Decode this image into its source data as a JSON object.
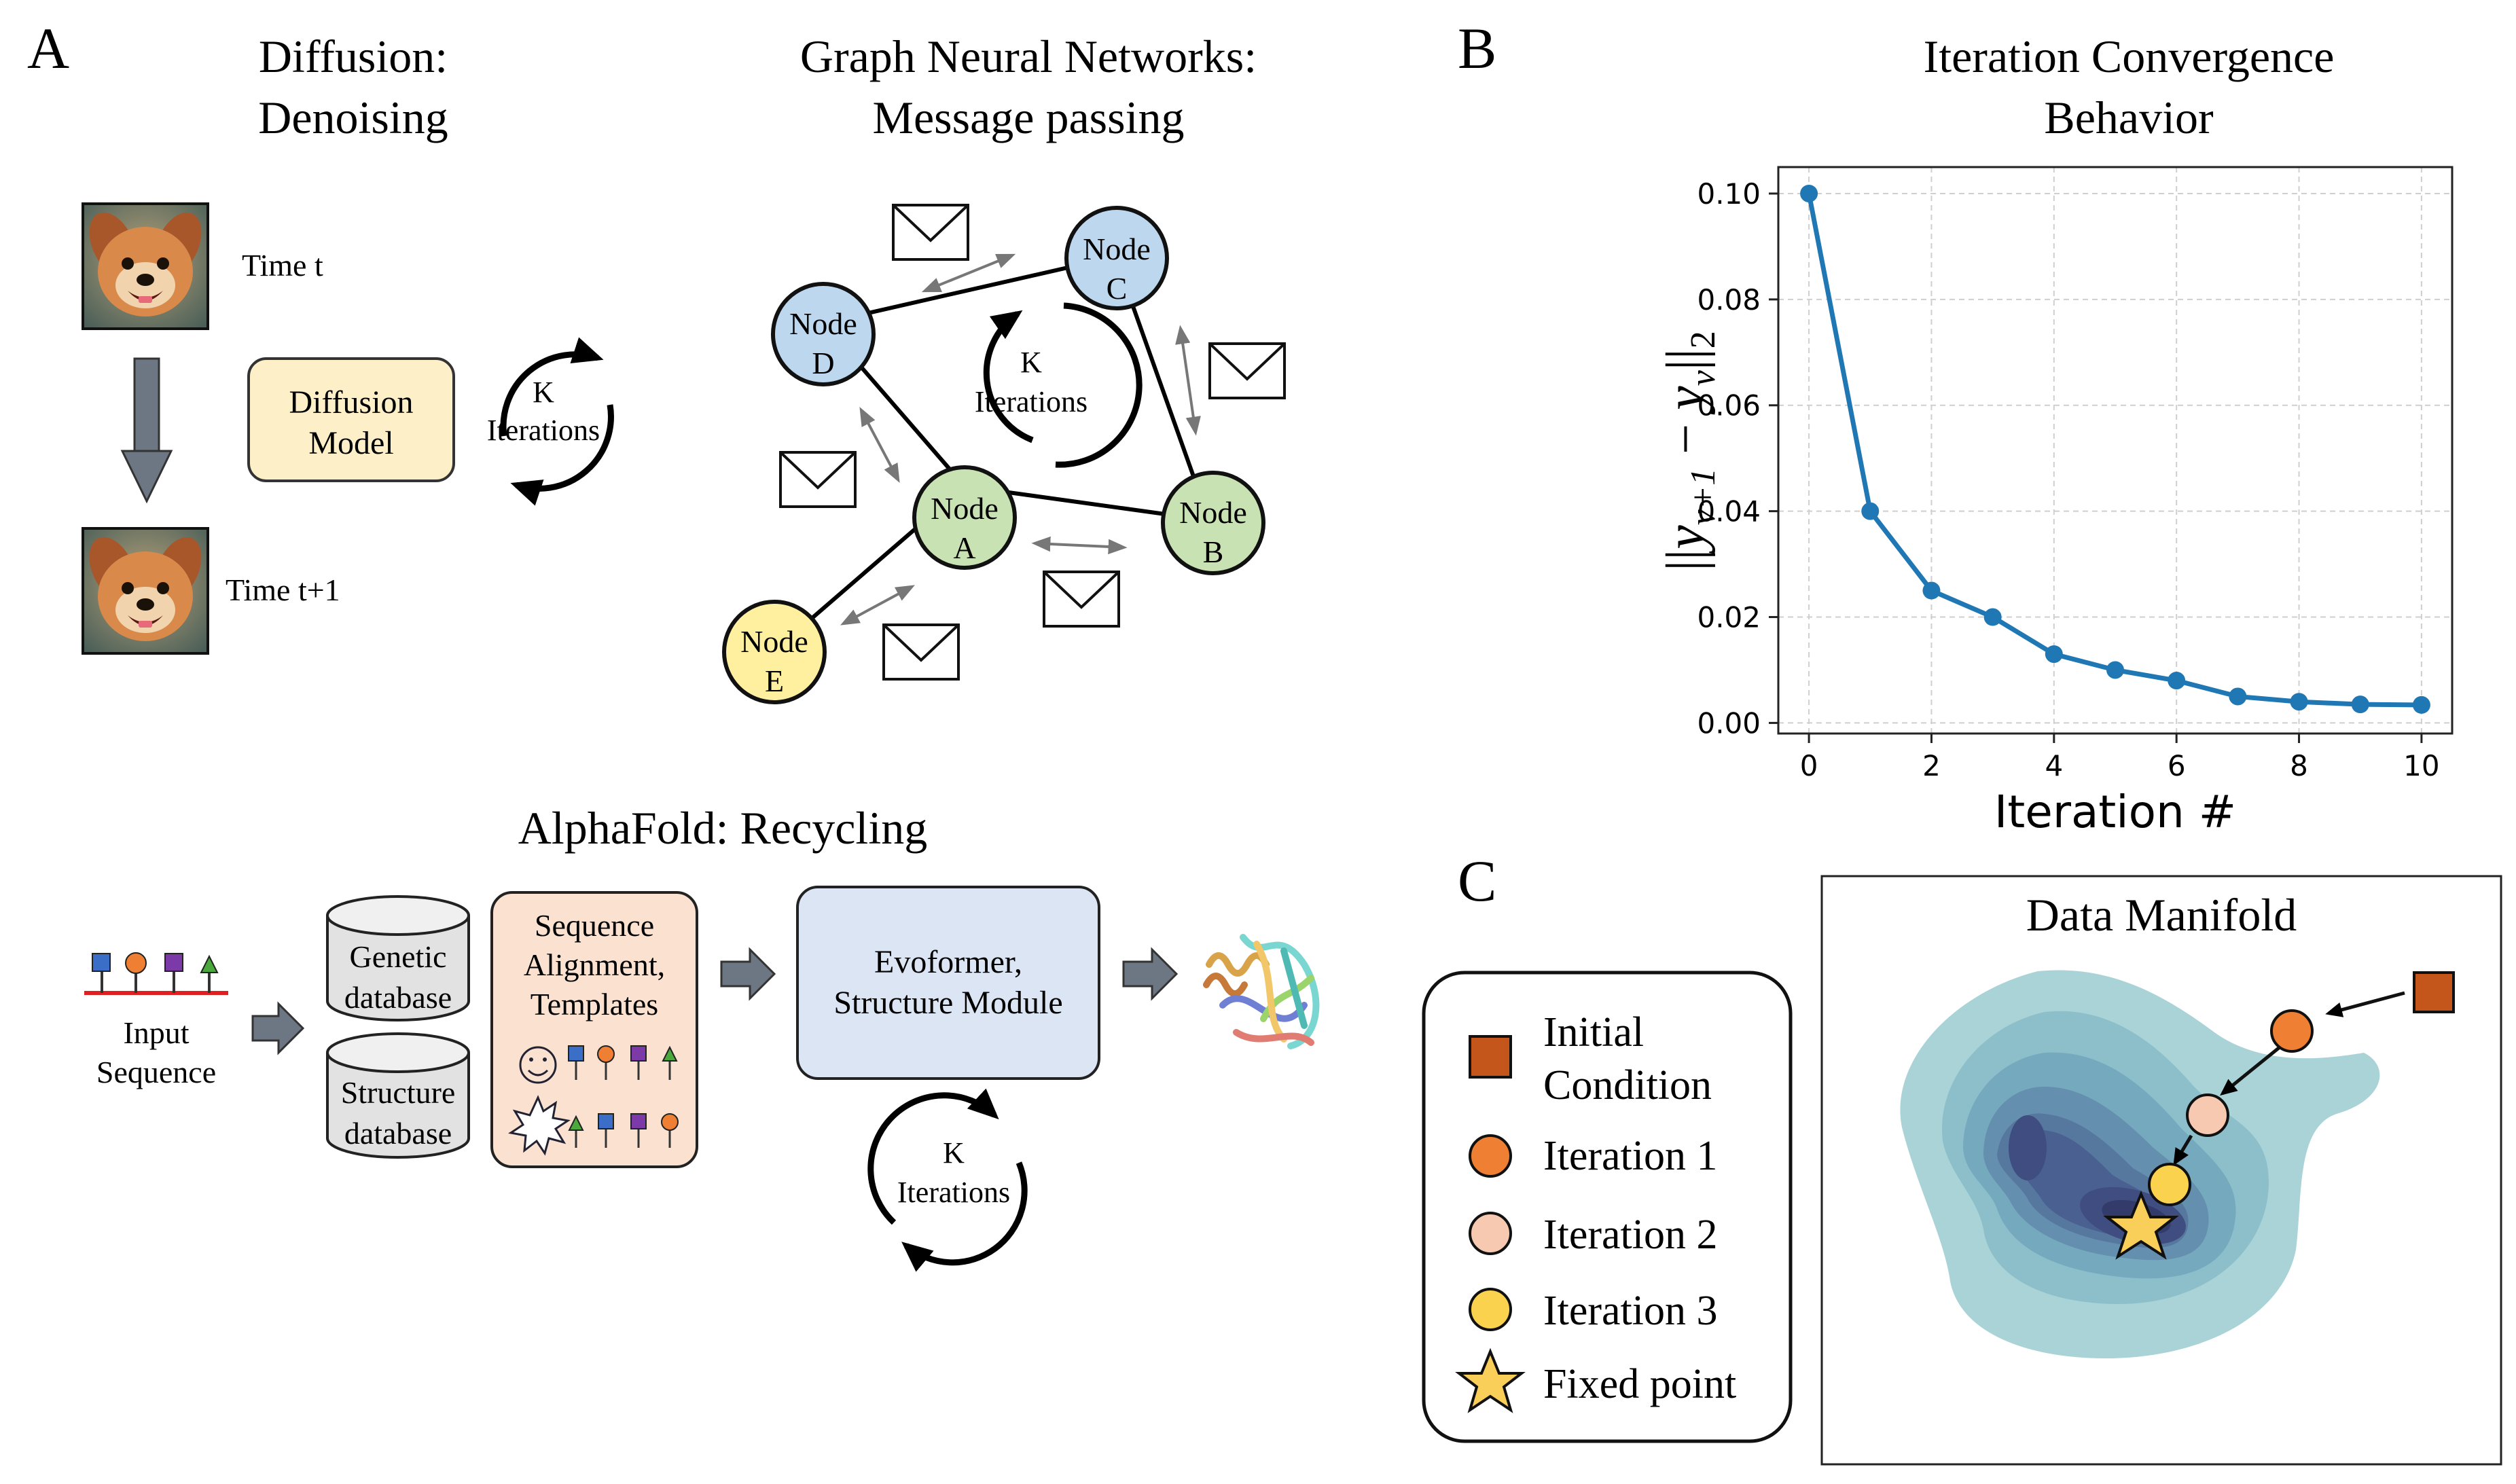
{
  "panel_labels": {
    "a": "A",
    "b": "B",
    "c": "C"
  },
  "diffusion": {
    "title_line1": "Diffusion:",
    "title_line2": "Denoising",
    "time_t": "Time t",
    "time_t1": "Time t+1",
    "model_line1": "Diffusion",
    "model_line2": "Model",
    "loop_line1": "K",
    "loop_line2": "Iterations"
  },
  "gnn": {
    "title_line1": "Graph Neural Networks:",
    "title_line2": "Message passing",
    "nodes": [
      {
        "line1": "Node",
        "line2": "A"
      },
      {
        "line1": "Node",
        "line2": "B"
      },
      {
        "line1": "Node",
        "line2": "C"
      },
      {
        "line1": "Node",
        "line2": "D"
      },
      {
        "line1": "Node",
        "line2": "E"
      }
    ],
    "loop_line1": "K",
    "loop_line2": "Iterations"
  },
  "alphafold": {
    "title": "AlphaFold: Recycling",
    "input_line1": "Input",
    "input_line2": "Sequence",
    "genetic_line1": "Genetic",
    "genetic_line2": "database",
    "structure_db_line1": "Structure",
    "structure_db_line2": "database",
    "msa_line1": "Sequence",
    "msa_line2": "Alignment,",
    "msa_line3": "Templates",
    "evo_line1": "Evoformer,",
    "evo_line2": "Structure Module",
    "loop_line1": "K",
    "loop_line2": "Iterations"
  },
  "chart_data": {
    "type": "line",
    "title_line1": "Iteration Convergence",
    "title_line2": "Behavior",
    "xlabel": "Iteration #",
    "ylabel": "||y_{v+1} − y_v||_2",
    "ylabel_parts": {
      "bars_open": "||",
      "y1": "y",
      "sub1": "v+1",
      "minus": " − ",
      "y2": "y",
      "sub2": "v",
      "bars_close": "||",
      "sub3": "2"
    },
    "x": [
      0,
      1,
      2,
      3,
      4,
      5,
      6,
      7,
      8,
      9,
      10
    ],
    "y": [
      0.1,
      0.04,
      0.025,
      0.02,
      0.013,
      0.01,
      0.008,
      0.005,
      0.004,
      0.0035,
      0.0034
    ],
    "xlim": [
      -0.5,
      10.5
    ],
    "ylim": [
      -0.002,
      0.105
    ],
    "xticks": [
      0,
      2,
      4,
      6,
      8,
      10
    ],
    "xtick_labels": [
      "0",
      "2",
      "4",
      "6",
      "8",
      "10"
    ],
    "yticks": [
      0.0,
      0.02,
      0.04,
      0.06,
      0.08,
      0.1
    ],
    "ytick_labels": [
      "0.00",
      "0.02",
      "0.04",
      "0.06",
      "0.08",
      "0.10"
    ],
    "grid": true,
    "color": "#1f77b4"
  },
  "manifold": {
    "title": "Data Manifold",
    "legend": {
      "initial_line1": "Initial",
      "initial_line2": "Condition",
      "iter1": "Iteration 1",
      "iter2": "Iteration 2",
      "iter3": "Iteration 3",
      "fixed": "Fixed point"
    },
    "colors": {
      "initial": "#c4561b",
      "iter1": "#ee7f33",
      "iter2": "#f6c9b0",
      "iter3": "#fbd24e",
      "fixed": "#f9cf5a",
      "contours": [
        "#a9d3d6",
        "#8dbfca",
        "#75a9be",
        "#648fae",
        "#56789f",
        "#4a6090",
        "#3f4d80",
        "#333b6a"
      ]
    }
  }
}
